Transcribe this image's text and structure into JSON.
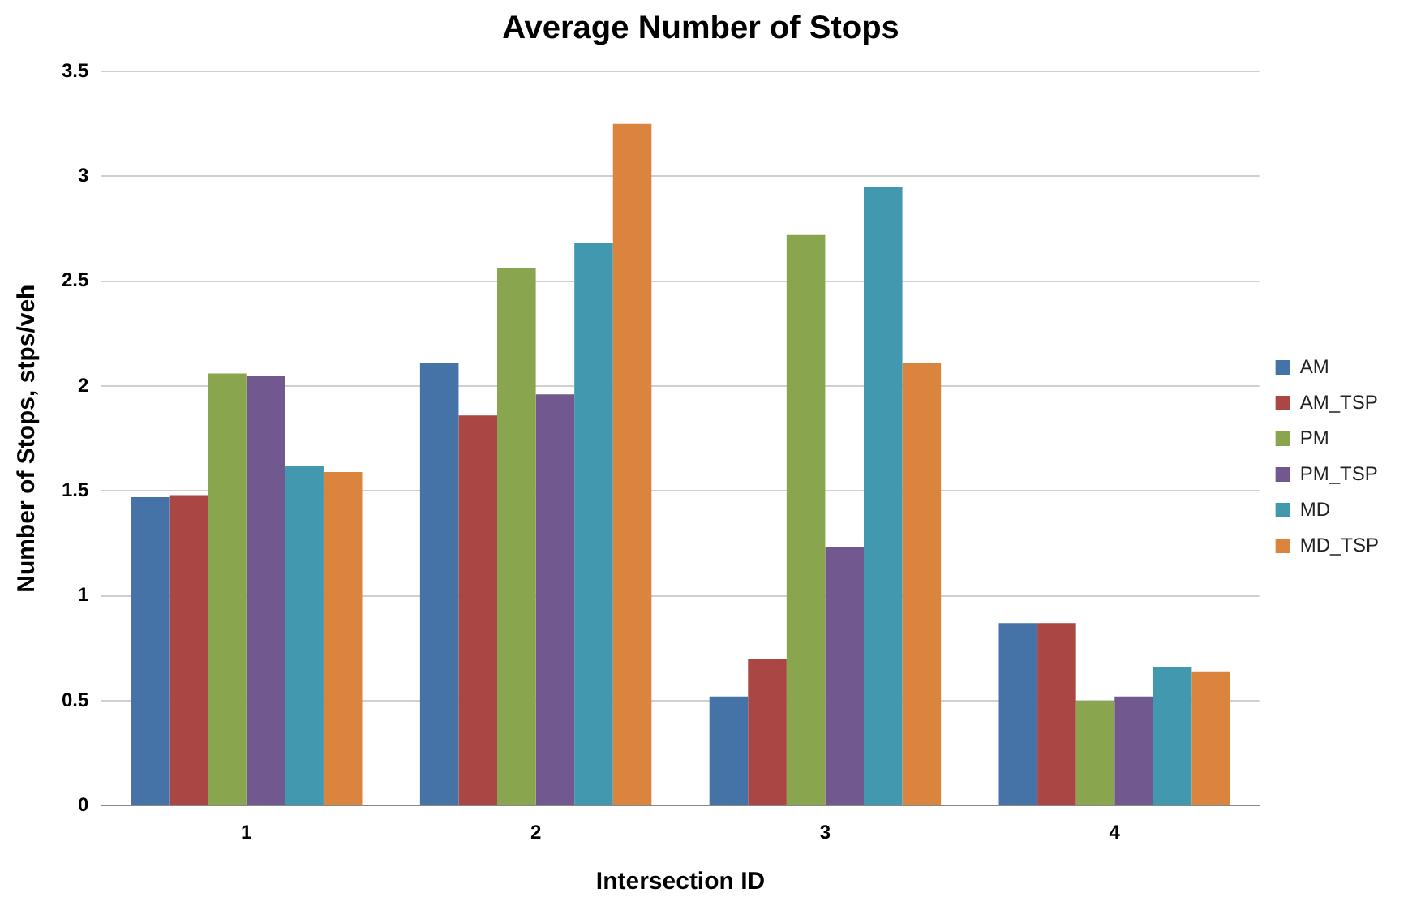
{
  "chart_data": {
    "type": "bar",
    "title": "Average Number of Stops",
    "xlabel": "Intersection ID",
    "ylabel": "Number of Stops, stps/veh",
    "categories": [
      "1",
      "2",
      "3",
      "4"
    ],
    "series": [
      {
        "name": "AM",
        "color": "#4572a7",
        "values": [
          1.47,
          2.11,
          0.52,
          0.87
        ]
      },
      {
        "name": "AM_TSP",
        "color": "#aa4643",
        "values": [
          1.48,
          1.86,
          0.7,
          0.87
        ]
      },
      {
        "name": "PM",
        "color": "#89a54e",
        "values": [
          2.06,
          2.56,
          2.72,
          0.5
        ]
      },
      {
        "name": "PM_TSP",
        "color": "#71588f",
        "values": [
          2.05,
          1.96,
          1.23,
          0.52
        ]
      },
      {
        "name": "MD",
        "color": "#4198af",
        "values": [
          1.62,
          2.68,
          2.95,
          0.66
        ]
      },
      {
        "name": "MD_TSP",
        "color": "#db843d",
        "values": [
          1.59,
          3.25,
          2.11,
          0.64
        ]
      }
    ],
    "ylim": [
      0,
      3.5
    ],
    "yticks": [
      0,
      0.5,
      1,
      1.5,
      2,
      2.5,
      3,
      3.5
    ],
    "grid": "y",
    "legend": "right"
  }
}
